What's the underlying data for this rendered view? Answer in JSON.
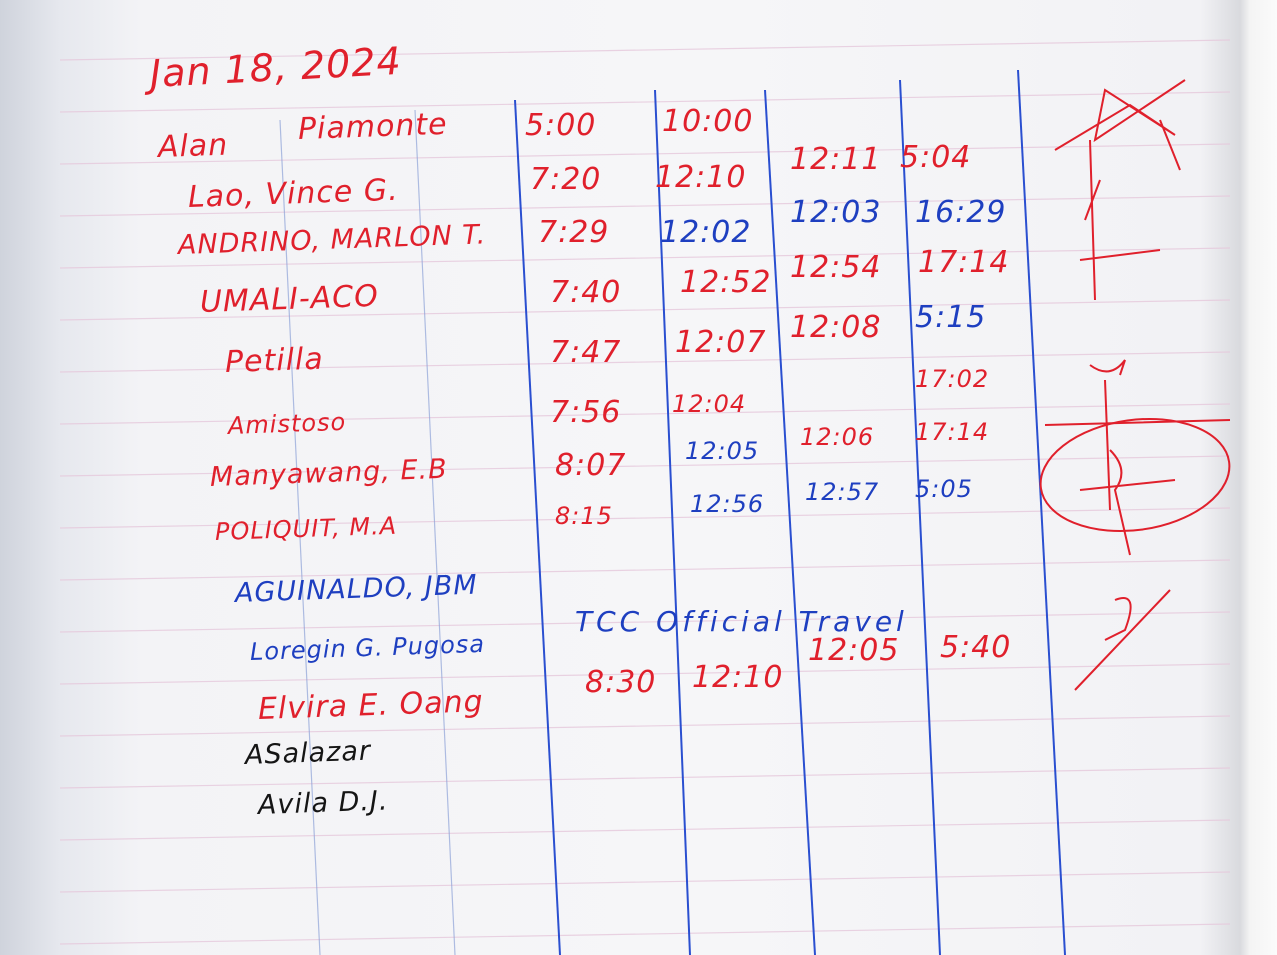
{
  "title": "Jan 18, 2024",
  "colors": {
    "red_ink": "#e0202c",
    "blue_ink": "#1e3fc0",
    "black_ink": "#151515",
    "column_line": "#2a4fd0"
  },
  "rows": [
    {
      "first": "Alan",
      "name": "Piamonte",
      "ink": "red",
      "times": [
        "5:00",
        "10:00",
        "",
        ""
      ]
    },
    {
      "name": "Lao, Vince G.",
      "ink": "red",
      "times": [
        "7:20",
        "12:10",
        "12:11",
        "5:04"
      ]
    },
    {
      "name": "ANDRINO, MARLON T.",
      "ink": "red",
      "times": [
        "7:29",
        "12:02",
        "12:03",
        "16:29"
      ]
    },
    {
      "name": "UMALI-ACO",
      "ink": "red",
      "times": [
        "7:40",
        "12:52",
        "12:54",
        "17:14"
      ]
    },
    {
      "name": "Petilla",
      "ink": "red",
      "times": [
        "7:47",
        "12:07",
        "12:08",
        "5:15"
      ]
    },
    {
      "name": "Amistoso",
      "ink": "red",
      "times": [
        "7:56",
        "12:04",
        "",
        "17:02"
      ]
    },
    {
      "name": "Manyawang, E.B",
      "ink": "red",
      "times": [
        "8:07",
        "12:05",
        "12:06",
        "17:14"
      ]
    },
    {
      "name": "POLIQUIT, M.A",
      "ink": "red",
      "times": [
        "8:15",
        "12:56",
        "12:57",
        "5:05"
      ]
    },
    {
      "name": "AGUINALDO, JBM",
      "ink": "blue",
      "times": [
        "",
        "",
        "",
        ""
      ]
    },
    {
      "name": "Loregin G. Pugosa",
      "ink": "blue",
      "note": "TCC Official Travel"
    },
    {
      "name": "Elvira E. Oang",
      "ink": "red",
      "times": [
        "8:30",
        "12:10",
        "12:05",
        "5:40"
      ]
    },
    {
      "name": "ASalazar",
      "ink": "black"
    },
    {
      "name": "Avila D.J.",
      "ink": "black"
    }
  ]
}
